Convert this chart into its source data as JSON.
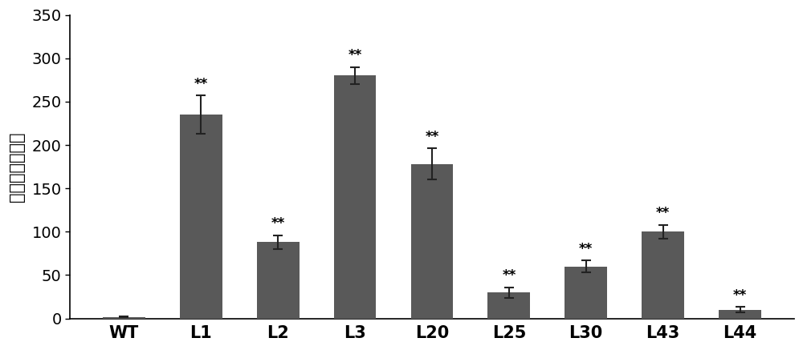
{
  "categories": [
    "WT",
    "L1",
    "L2",
    "L3",
    "L20",
    "L25",
    "L30",
    "L43",
    "L44"
  ],
  "values": [
    1.5,
    235,
    88,
    280,
    178,
    30,
    60,
    100,
    10
  ],
  "errors": [
    0.5,
    22,
    8,
    10,
    18,
    6,
    7,
    8,
    3
  ],
  "bar_color": "#595959",
  "ylabel": "基因相对表达量",
  "ylim": [
    0,
    350
  ],
  "yticks": [
    0,
    50,
    100,
    150,
    200,
    250,
    300,
    350
  ],
  "significance": [
    "",
    "**",
    "**",
    "**",
    "**",
    "**",
    "**",
    "**",
    "**"
  ],
  "sig_fontsize": 12,
  "ylabel_fontsize": 15,
  "tick_fontsize": 14,
  "xtick_fontsize": 15,
  "bar_width": 0.55,
  "background_color": "#ffffff",
  "plot_background": "#ffffff",
  "error_capsize": 4,
  "error_linewidth": 1.5,
  "error_color": "#222222"
}
